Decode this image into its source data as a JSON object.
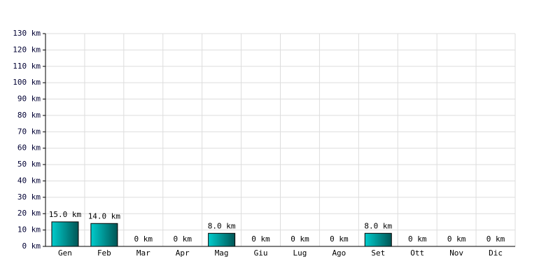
{
  "chart_data": {
    "type": "bar",
    "categories": [
      "Gen",
      "Feb",
      "Mar",
      "Apr",
      "Mag",
      "Giu",
      "Lug",
      "Ago",
      "Set",
      "Ott",
      "Nov",
      "Dic"
    ],
    "values": [
      15,
      14,
      0,
      0,
      8,
      0,
      0,
      0,
      8,
      0,
      0,
      0
    ],
    "value_labels": [
      "15.0 km",
      "14.0 km",
      "0 km",
      "0 km",
      "8.0 km",
      "0 km",
      "0 km",
      "0 km",
      "8.0 km",
      "0 km",
      "0 km",
      "0 km"
    ],
    "color": "#00cccc",
    "ylim": [
      0,
      130
    ],
    "yticks": [
      {
        "value": 0,
        "label": "0 km"
      },
      {
        "value": 10,
        "label": "10 km"
      },
      {
        "value": 20,
        "label": "20 km"
      },
      {
        "value": 30,
        "label": "30 km"
      },
      {
        "value": 40,
        "label": "40 km"
      },
      {
        "value": 50,
        "label": "50 km"
      },
      {
        "value": 60,
        "label": "60 km"
      },
      {
        "value": 70,
        "label": "70 km"
      },
      {
        "value": 80,
        "label": "80 km"
      },
      {
        "value": 90,
        "label": "90 km"
      },
      {
        "value": 100,
        "label": "100 km"
      },
      {
        "value": 110,
        "label": "110 km"
      },
      {
        "value": 120,
        "label": "120 km"
      },
      {
        "value": 130,
        "label": "130 km"
      }
    ],
    "grid": true
  }
}
